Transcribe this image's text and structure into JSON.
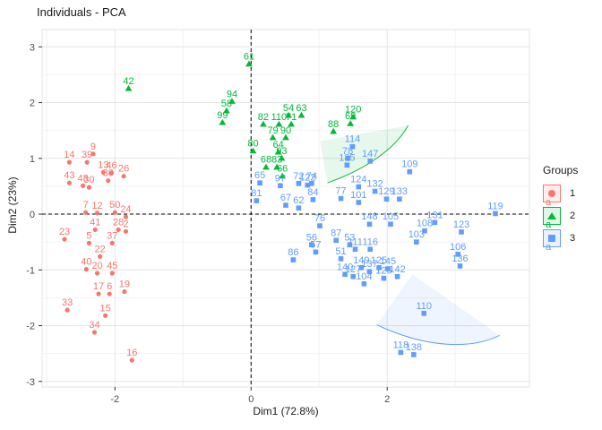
{
  "title": "Individuals - PCA",
  "axes": {
    "x_label": "Dim1 (72.8%)",
    "y_label": "Dim2 (23%)",
    "x_tick_labels": [
      "-2",
      "0",
      "2"
    ],
    "y_tick_labels": [
      "3",
      "2",
      "1",
      "0",
      "-1",
      "-2",
      "-3"
    ]
  },
  "legend": {
    "title": "Groups",
    "key_glyph": "a",
    "items": [
      {
        "label": "1",
        "shape": "circle",
        "color": "#F8766D"
      },
      {
        "label": "2",
        "shape": "triangle",
        "color": "#00BA38"
      },
      {
        "label": "3",
        "shape": "square",
        "color": "#619CFF"
      }
    ]
  },
  "colors": {
    "group1": "#F8766D",
    "group2": "#00BA38",
    "group3": "#619CFF",
    "grid_major": "#E4E4E4",
    "grid_minor": "#F2F2F2",
    "panel_border": "#E3E3E3",
    "axis_text": "#4D4D4D",
    "zero_line": "#000000"
  },
  "chart_data": {
    "type": "scatter",
    "title": "Individuals - PCA",
    "xlabel": "Dim1 (72.8%)",
    "ylabel": "Dim2 (23%)",
    "xlim": [
      -3.07,
      4.09
    ],
    "ylim": [
      -3.1,
      3.31
    ],
    "x_ticks": [
      -2,
      0,
      2
    ],
    "y_ticks": [
      3,
      2,
      1,
      0,
      -1,
      -2,
      -3
    ],
    "x_minor": [
      -3,
      -1,
      1,
      3
    ],
    "y_minor": [
      -2.5,
      -1.5,
      -0.5,
      0.5,
      1.5,
      2.5
    ],
    "grid": true,
    "legend_position": "right",
    "zero_lines": {
      "x": 0,
      "y": 0,
      "style": "dashed"
    },
    "series": [
      {
        "name": "1",
        "shape": "circle",
        "color": "#F8766D",
        "ellipse": {
          "cx": -2.04,
          "cy": -0.26,
          "rx": 0.6,
          "ry": 2.42,
          "angle": 3
        },
        "points": [
          {
            "label": "9",
            "x": -2.32,
            "y": 1.08
          },
          {
            "label": "14",
            "x": -2.67,
            "y": 0.93
          },
          {
            "label": "39",
            "x": -2.41,
            "y": 0.93
          },
          {
            "label": "13",
            "x": -2.17,
            "y": 0.75
          },
          {
            "label": "46",
            "x": -2.05,
            "y": 0.74
          },
          {
            "label": "26",
            "x": -1.87,
            "y": 0.68
          },
          {
            "label": "36",
            "x": -2.1,
            "y": 0.6
          },
          {
            "label": "43",
            "x": -2.67,
            "y": 0.56
          },
          {
            "label": "48",
            "x": -2.47,
            "y": 0.51
          },
          {
            "label": "30",
            "x": -2.38,
            "y": 0.48
          },
          {
            "label": "50",
            "x": -2.0,
            "y": 0.03
          },
          {
            "label": "7",
            "x": -2.43,
            "y": 0.03
          },
          {
            "label": "12",
            "x": -2.26,
            "y": 0.02
          },
          {
            "label": "24",
            "x": -1.84,
            "y": -0.05
          },
          {
            "label": "23",
            "x": -2.74,
            "y": -0.45
          },
          {
            "label": "41",
            "x": -2.29,
            "y": -0.28
          },
          {
            "label": "28",
            "x": -1.95,
            "y": -0.28
          },
          {
            "label": "2",
            "x": -1.84,
            "y": -0.31
          },
          {
            "label": "5",
            "x": -2.38,
            "y": -0.52
          },
          {
            "label": "37",
            "x": -2.04,
            "y": -0.52
          },
          {
            "label": "22",
            "x": -2.22,
            "y": -0.76
          },
          {
            "label": "40",
            "x": -2.42,
            "y": -0.99
          },
          {
            "label": "20",
            "x": -2.26,
            "y": -1.06
          },
          {
            "label": "45",
            "x": -2.04,
            "y": -1.06
          },
          {
            "label": "17",
            "x": -2.24,
            "y": -1.43
          },
          {
            "label": "6",
            "x": -2.08,
            "y": -1.43
          },
          {
            "label": "19",
            "x": -1.86,
            "y": -1.39
          },
          {
            "label": "33",
            "x": -2.7,
            "y": -1.72
          },
          {
            "label": "15",
            "x": -2.14,
            "y": -1.82
          },
          {
            "label": "34",
            "x": -2.3,
            "y": -2.12
          },
          {
            "label": "16",
            "x": -1.75,
            "y": -2.62
          }
        ]
      },
      {
        "name": "2",
        "shape": "triangle",
        "color": "#00BA38",
        "ellipse": {
          "cx": 0.33,
          "cy": 1.7,
          "rx": 2.1,
          "ry": 1.35,
          "angle": -10
        },
        "points": [
          {
            "label": "42",
            "x": -1.8,
            "y": 2.25
          },
          {
            "label": "61",
            "x": -0.03,
            "y": 2.69
          },
          {
            "label": "94",
            "x": -0.28,
            "y": 2.02
          },
          {
            "label": "58",
            "x": -0.36,
            "y": 1.85
          },
          {
            "label": "99",
            "x": -0.42,
            "y": 1.64
          },
          {
            "label": "54",
            "x": 0.55,
            "y": 1.77
          },
          {
            "label": "63",
            "x": 0.74,
            "y": 1.77
          },
          {
            "label": "82",
            "x": 0.18,
            "y": 1.61
          },
          {
            "label": "110",
            "x": 0.41,
            "y": 1.61
          },
          {
            "label": "71",
            "x": 0.59,
            "y": 1.61
          },
          {
            "label": "79",
            "x": 0.32,
            "y": 1.37
          },
          {
            "label": "90",
            "x": 0.51,
            "y": 1.37
          },
          {
            "label": "88",
            "x": 1.21,
            "y": 1.48
          },
          {
            "label": "120",
            "x": 1.5,
            "y": 1.74
          },
          {
            "label": "69",
            "x": 1.46,
            "y": 1.62
          },
          {
            "label": "80",
            "x": 0.03,
            "y": 1.13
          },
          {
            "label": "64",
            "x": 0.4,
            "y": 1.11
          },
          {
            "label": "93",
            "x": 0.45,
            "y": 1.0
          },
          {
            "label": "68",
            "x": 0.22,
            "y": 0.84
          },
          {
            "label": "83",
            "x": 0.38,
            "y": 0.84
          },
          {
            "label": "66",
            "x": 0.46,
            "y": 0.68
          }
        ]
      },
      {
        "name": "3",
        "shape": "square",
        "color": "#619CFF",
        "ellipse": {
          "cx": 2.11,
          "cy": -0.21,
          "rx": 2.3,
          "ry": 1.7,
          "angle": 35
        },
        "points": [
          {
            "label": "114",
            "x": 1.49,
            "y": 1.21
          },
          {
            "label": "78",
            "x": 1.42,
            "y": 1.0
          },
          {
            "label": "135",
            "x": 1.41,
            "y": 0.88
          },
          {
            "label": "147",
            "x": 1.75,
            "y": 0.95
          },
          {
            "label": "109",
            "x": 2.33,
            "y": 0.76
          },
          {
            "label": "122",
            "x": 0.83,
            "y": 0.52
          },
          {
            "label": "124",
            "x": 1.58,
            "y": 0.49
          },
          {
            "label": "132",
            "x": 1.82,
            "y": 0.41
          },
          {
            "label": "77",
            "x": 1.32,
            "y": 0.28
          },
          {
            "label": "84",
            "x": 0.91,
            "y": 0.26
          },
          {
            "label": "81",
            "x": 0.08,
            "y": 0.24
          },
          {
            "label": "65",
            "x": 0.13,
            "y": 0.56
          },
          {
            "label": "97",
            "x": 0.43,
            "y": 0.51
          },
          {
            "label": "72",
            "x": 0.7,
            "y": 0.55
          },
          {
            "label": "74",
            "x": 0.89,
            "y": 0.55
          },
          {
            "label": "67",
            "x": 0.51,
            "y": 0.16
          },
          {
            "label": "62",
            "x": 0.7,
            "y": 0.11
          },
          {
            "label": "129",
            "x": 1.99,
            "y": 0.27
          },
          {
            "label": "133",
            "x": 2.18,
            "y": 0.27
          },
          {
            "label": "101",
            "x": 1.58,
            "y": 0.21
          },
          {
            "label": "105",
            "x": 2.05,
            "y": -0.18
          },
          {
            "label": "148",
            "x": 1.74,
            "y": -0.18
          },
          {
            "label": "131",
            "x": 2.7,
            "y": -0.15
          },
          {
            "label": "76",
            "x": 1.01,
            "y": -0.21
          },
          {
            "label": "87",
            "x": 1.25,
            "y": -0.47
          },
          {
            "label": "53",
            "x": 1.45,
            "y": -0.55
          },
          {
            "label": "56",
            "x": 0.89,
            "y": -0.55
          },
          {
            "label": "57",
            "x": 0.95,
            "y": -0.68
          },
          {
            "label": "51",
            "x": 1.32,
            "y": -0.8
          },
          {
            "label": "86",
            "x": 0.62,
            "y": -0.82
          },
          {
            "label": "111",
            "x": 1.53,
            "y": -0.63
          },
          {
            "label": "116",
            "x": 1.75,
            "y": -0.63
          },
          {
            "label": "149",
            "x": 1.62,
            "y": -0.96
          },
          {
            "label": "125",
            "x": 1.88,
            "y": -0.96
          },
          {
            "label": "145",
            "x": 2.01,
            "y": -0.98
          },
          {
            "label": "137",
            "x": 1.74,
            "y": -1.03
          },
          {
            "label": "104",
            "x": 1.66,
            "y": -1.25
          },
          {
            "label": "127",
            "x": 1.5,
            "y": -1.12
          },
          {
            "label": "126",
            "x": 1.95,
            "y": -1.15
          },
          {
            "label": "142",
            "x": 2.15,
            "y": -1.12
          },
          {
            "label": "140",
            "x": 1.38,
            "y": -1.08
          },
          {
            "label": "103",
            "x": 2.43,
            "y": -0.5
          },
          {
            "label": "108",
            "x": 2.55,
            "y": -0.3
          },
          {
            "label": "123",
            "x": 3.09,
            "y": -0.32
          },
          {
            "label": "119",
            "x": 3.59,
            "y": 0.01
          },
          {
            "label": "106",
            "x": 3.04,
            "y": -0.72
          },
          {
            "label": "136",
            "x": 3.07,
            "y": -0.93
          },
          {
            "label": "110",
            "x": 2.54,
            "y": -1.78
          },
          {
            "label": "118",
            "x": 2.2,
            "y": -2.48
          },
          {
            "label": "138",
            "x": 2.39,
            "y": -2.52
          }
        ]
      }
    ]
  }
}
